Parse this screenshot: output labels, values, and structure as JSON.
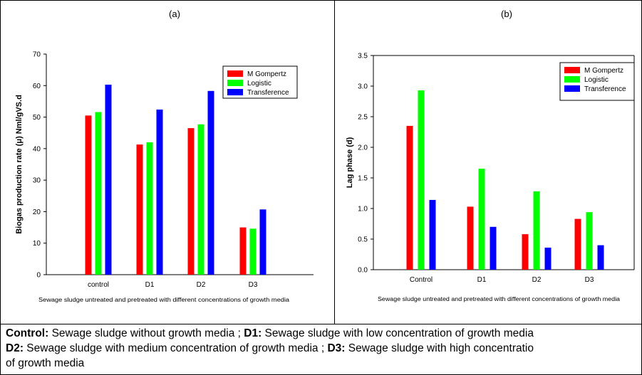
{
  "chart_data": [
    {
      "type": "bar",
      "panel_label": "(a)",
      "ylabel": "Biogas production rate (μ) Nml/gVS.d",
      "xlabel": "Sewage sludge untreated and pretreated with different concentrations of growth media",
      "categories": [
        "control",
        "D1",
        "D2",
        "D3"
      ],
      "ylim": [
        0,
        70
      ],
      "yticks": [
        "0",
        "10",
        "20",
        "30",
        "40",
        "50",
        "60",
        "70"
      ],
      "series": [
        {
          "name": "M Gompertz",
          "color": "#ff0000",
          "values": [
            50.5,
            41.3,
            46.5,
            15.0
          ]
        },
        {
          "name": "Logistic",
          "color": "#00ff00",
          "values": [
            51.6,
            42.0,
            47.7,
            14.6
          ]
        },
        {
          "name": "Transference",
          "color": "#0000ff",
          "values": [
            60.3,
            52.4,
            58.3,
            20.7
          ]
        }
      ],
      "legend_position": "top-right",
      "grid": false
    },
    {
      "type": "bar",
      "panel_label": "(b)",
      "ylabel": "Lag phase (d)",
      "xlabel": "Sewage sludge untreated and pretreated with different concentrations of growth media",
      "categories": [
        "Control",
        "D1",
        "D2",
        "D3"
      ],
      "ylim": [
        0,
        3.5
      ],
      "yticks": [
        "0.0",
        "0.5",
        "1.0",
        "1.5",
        "2.0",
        "2.5",
        "3.0",
        "3.5"
      ],
      "series": [
        {
          "name": "M Gompertz",
          "color": "#ff0000",
          "values": [
            2.35,
            1.03,
            0.58,
            0.83
          ]
        },
        {
          "name": "Logistic",
          "color": "#00ff00",
          "values": [
            2.93,
            1.65,
            1.28,
            0.94
          ]
        },
        {
          "name": "Transference",
          "color": "#0000ff",
          "values": [
            1.14,
            0.7,
            0.36,
            0.4
          ]
        }
      ],
      "legend_position": "top-right",
      "grid": false
    }
  ],
  "caption": {
    "line1": [
      {
        "text": "Control:",
        "bold": true
      },
      {
        "text": " Sewage sludge without growth media ; ",
        "bold": false
      },
      {
        "text": "D1:",
        "bold": true
      },
      {
        "text": " Sewage sludge with low concentration of growth media",
        "bold": false
      }
    ],
    "line2": [
      {
        "text": "D2:",
        "bold": true
      },
      {
        "text": " Sewage sludge with medium concentration of growth media ; ",
        "bold": false
      },
      {
        "text": "D3:",
        "bold": true
      },
      {
        "text": " Sewage sludge with high concentratio",
        "bold": false
      }
    ],
    "line3": [
      {
        "text": "of growth media",
        "bold": false
      }
    ]
  }
}
